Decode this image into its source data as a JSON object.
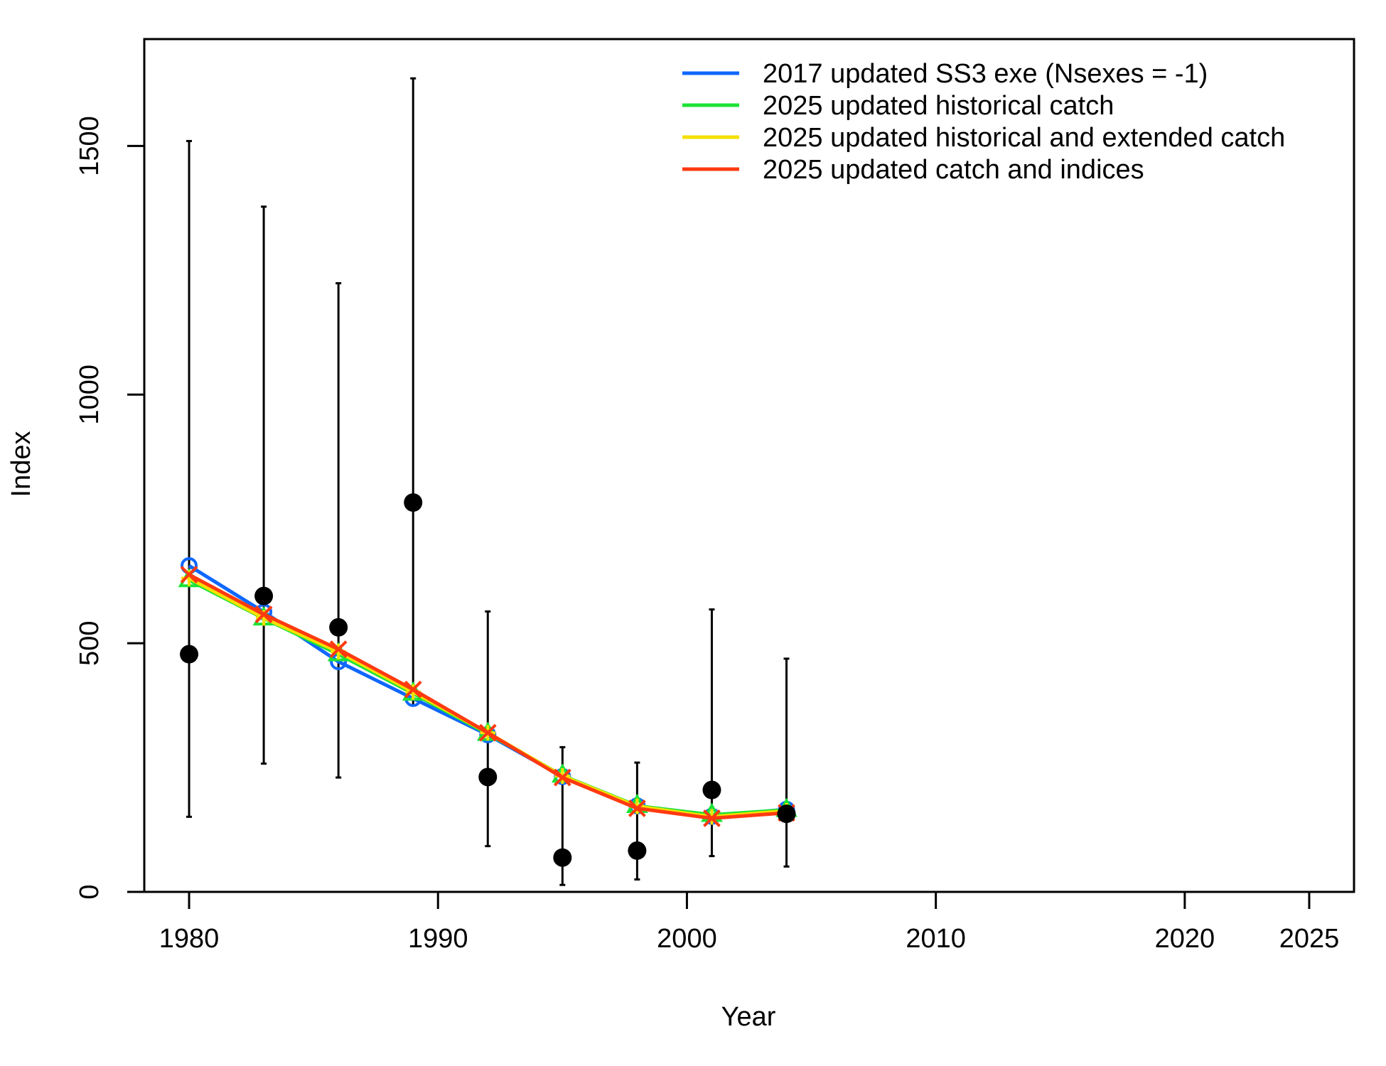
{
  "chart_data": {
    "type": "line",
    "xlabel": "Year",
    "ylabel": "Index",
    "xlim": [
      1978.2,
      2026.8
    ],
    "ylim": [
      0,
      1715
    ],
    "x_ticks": [
      1980,
      1990,
      2000,
      2010,
      2020,
      2025
    ],
    "y_ticks": [
      0,
      500,
      1000,
      1500
    ],
    "grid": false,
    "legend_position": "top-right",
    "observed": {
      "x": [
        1980,
        1983,
        1986,
        1989,
        1992,
        1995,
        1998,
        2001,
        2004
      ],
      "y": [
        478,
        595,
        532,
        783,
        231,
        69,
        83,
        205,
        157
      ],
      "lower": [
        151,
        258,
        230,
        375,
        92,
        14,
        25,
        72,
        51
      ],
      "upper": [
        1510,
        1378,
        1224,
        1636,
        564,
        291,
        260,
        568,
        469
      ]
    },
    "series": [
      {
        "name": "2017 updated SS3 exe (Nsexes = -1)",
        "color": "#0F67FF",
        "marker": "circle",
        "x": [
          1980,
          1983,
          1986,
          1989,
          1992,
          1995,
          1998,
          2001,
          2004
        ],
        "y": [
          656,
          563,
          463,
          389,
          316,
          232,
          173,
          152,
          166
        ]
      },
      {
        "name": "2025 updated historical catch",
        "color": "#1CE336",
        "marker": "triangle",
        "x": [
          1980,
          1983,
          1986,
          1989,
          1992,
          1995,
          1998,
          2001,
          2004
        ],
        "y": [
          627,
          550,
          478,
          399,
          318,
          234,
          173,
          155,
          165
        ]
      },
      {
        "name": "2025 updated historical and extended catch",
        "color": "#F5E000",
        "marker": "plus",
        "x": [
          1980,
          1983,
          1986,
          1989,
          1992,
          1995,
          1998,
          2001,
          2004
        ],
        "y": [
          631,
          551,
          483,
          402,
          320,
          233,
          172,
          151,
          163
        ]
      },
      {
        "name": "2025 updated catch and indices",
        "color": "#FF3A10",
        "marker": "cross",
        "x": [
          1980,
          1983,
          1986,
          1989,
          1992,
          1995,
          1998,
          2001,
          2004
        ],
        "y": [
          638,
          558,
          488,
          407,
          320,
          230,
          168,
          148,
          159
        ]
      }
    ]
  }
}
